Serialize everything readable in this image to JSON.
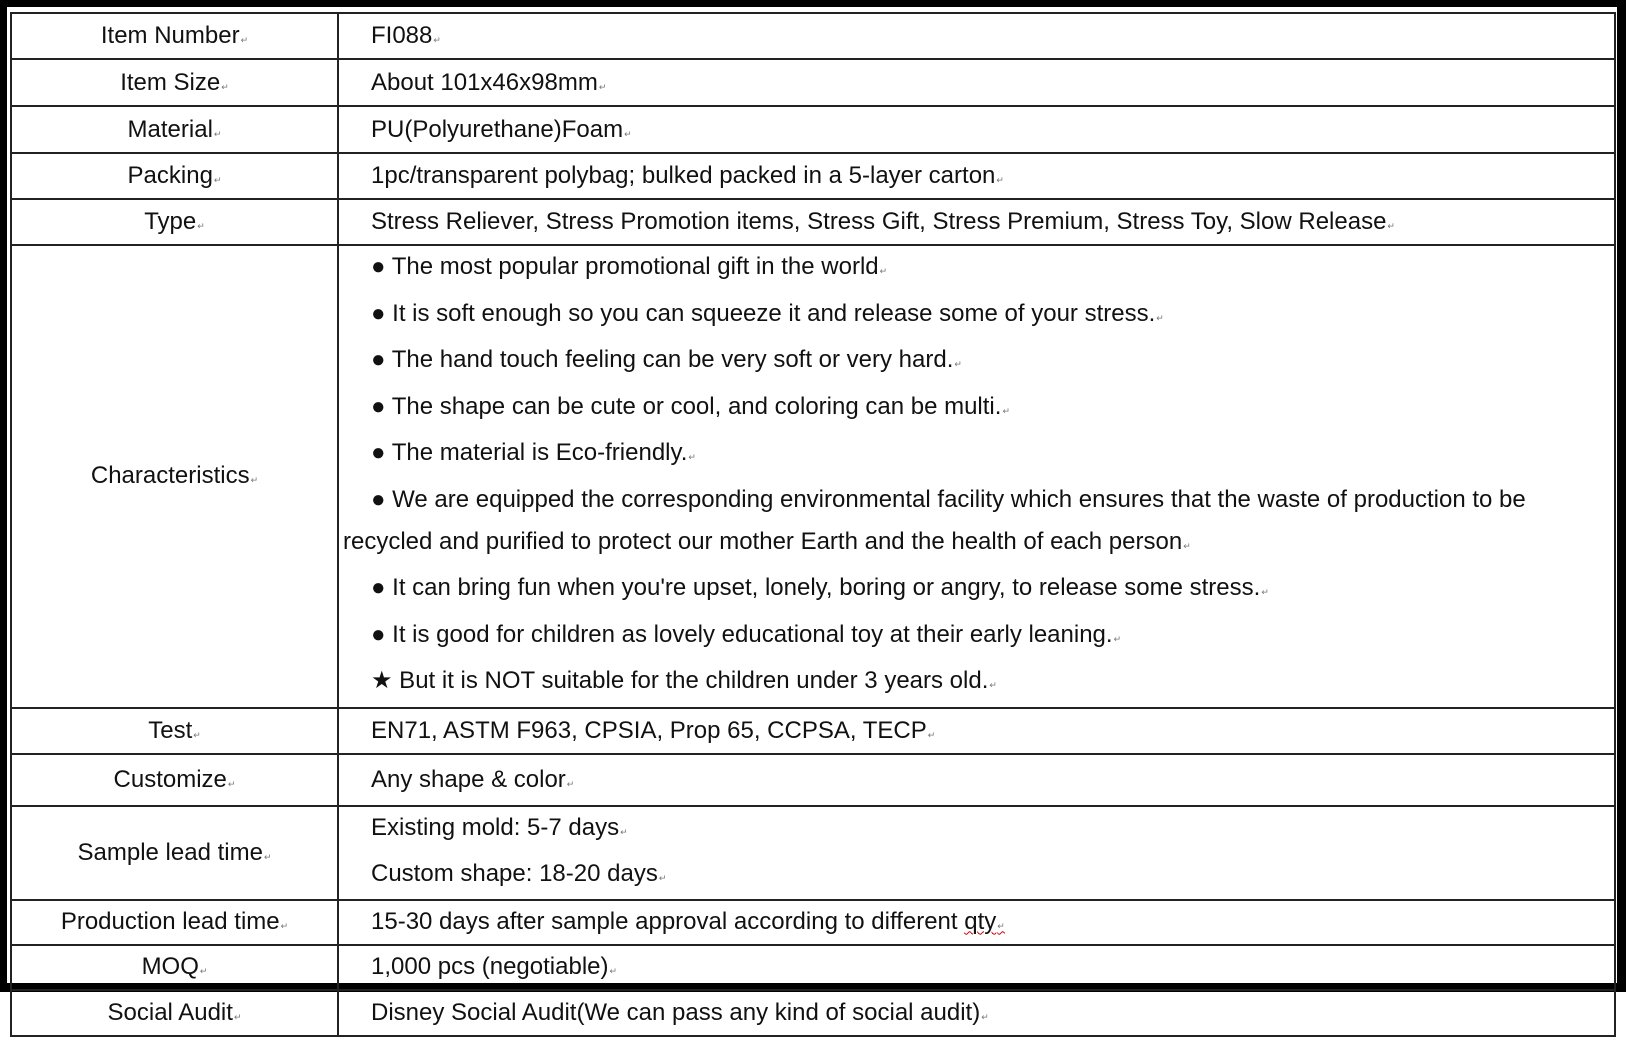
{
  "rows": [
    {
      "label": "Item Number",
      "value": "FI088"
    },
    {
      "label": "Item Size",
      "value": "About 101x46x98mm"
    },
    {
      "label": "Material",
      "value": "PU(Polyurethane)Foam"
    },
    {
      "label": "Packing",
      "value": "1pc/transparent polybag; bulked packed in a 5-layer carton"
    },
    {
      "label": "Type",
      "value": "Stress Reliever, Stress Promotion items, Stress Gift, Stress Premium, Stress Toy, Slow Release"
    }
  ],
  "characteristics": {
    "label": "Characteristics",
    "items": [
      "● The most popular promotional gift in the world",
      "● It is soft enough so you can squeeze it and release some of your stress.",
      "● The hand touch feeling can be very soft or very hard.",
      "● The shape can be cute or cool, and coloring can be multi.",
      "● The material is Eco-friendly.",
      "● We are equipped the corresponding environmental facility which ensures that the waste of production to be recycled and purified to protect our mother Earth and the health of each person",
      "● It can bring fun when you're upset, lonely, boring or angry, to release some stress.",
      "● It is good for children as lovely educational toy at their early leaning.",
      "★ But it is NOT suitable for the children under 3 years old."
    ]
  },
  "rows2": [
    {
      "label": "Test",
      "value": "EN71, ASTM F963, CPSIA, Prop 65, CCPSA, TECP"
    },
    {
      "label": "Customize",
      "value": "Any shape & color"
    }
  ],
  "sample": {
    "label": "Sample lead time",
    "lines": [
      "Existing mold: 5-7 days",
      "Custom shape: 18-20 days"
    ]
  },
  "production": {
    "label": "Production lead time",
    "value": "15-30 days after sample approval according to different",
    "value_tail": "qty"
  },
  "rows3": [
    {
      "label": "MOQ",
      "value": "1,000 pcs (negotiable)"
    },
    {
      "label": "Social Audit",
      "value": "Disney Social Audit(We can pass any kind of social audit)"
    }
  ]
}
